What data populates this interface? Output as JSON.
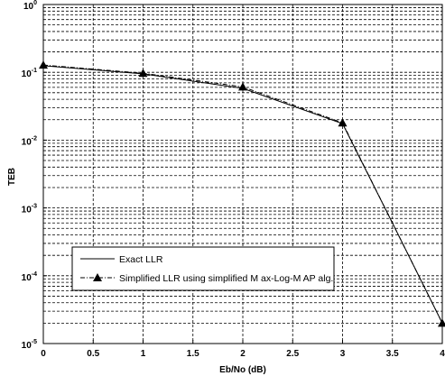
{
  "chart_data": {
    "type": "line",
    "xlabel": "Eb/No (dB)",
    "ylabel": "TEB",
    "xlim": [
      0,
      4
    ],
    "ylim": [
      1e-05,
      1
    ],
    "yscale": "log",
    "grid": true,
    "x_ticks": [
      "0",
      "0.5",
      "1",
      "1.5",
      "2",
      "2.5",
      "3",
      "3.5",
      "4"
    ],
    "y_ticks": [
      {
        "base": "10",
        "exp": "-5",
        "value": 1e-05
      },
      {
        "base": "10",
        "exp": "-4",
        "value": 0.0001
      },
      {
        "base": "10",
        "exp": "-3",
        "value": 0.001
      },
      {
        "base": "10",
        "exp": "-2",
        "value": 0.01
      },
      {
        "base": "10",
        "exp": "-1",
        "value": 0.1
      },
      {
        "base": "10",
        "exp": "0",
        "value": 1
      }
    ],
    "legend_position": "bottom-left",
    "series": [
      {
        "name": "Exact LLR",
        "style": "solid",
        "marker": "none",
        "x": [
          0,
          1,
          2,
          3,
          3.5,
          4
        ],
        "y": [
          0.125,
          0.095,
          0.058,
          0.0175,
          0.0006,
          2e-05
        ]
      },
      {
        "name": "Simplified LLR using simplified Max-Log-MAP alg.",
        "style": "dashdot",
        "marker": "triangle",
        "x": [
          0,
          1,
          2,
          3,
          4
        ],
        "y": [
          0.128,
          0.097,
          0.061,
          0.018,
          2e-05
        ]
      }
    ]
  },
  "legend": {
    "labels": [
      "Exact LLR",
      "Simplified LLR using simplified M ax-Log-M AP alg."
    ]
  },
  "colors": {
    "line": "#000000",
    "grid": "#000000",
    "background": "#ffffff"
  }
}
